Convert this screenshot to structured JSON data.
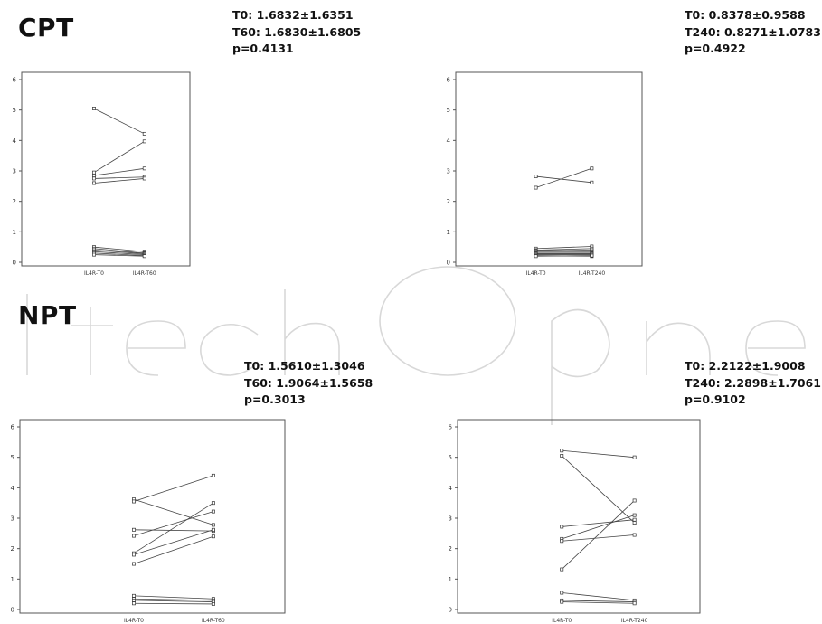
{
  "section_labels": {
    "top": "CPT",
    "bottom": "NPT"
  },
  "chart_data": [
    {
      "type": "line",
      "group": "CPT",
      "title": "",
      "xlabel": "",
      "ylabel": "",
      "categories": [
        "IL4R-T0",
        "IL4R-T60"
      ],
      "ylim": [
        0,
        6
      ],
      "yticks": [
        0,
        1,
        2,
        3,
        4,
        5,
        6
      ],
      "stats": [
        "T0: 1.6832±1.6351",
        "T60: 1.6830±1.6805",
        "p=0.4131"
      ],
      "pairs": [
        [
          5.05,
          4.22
        ],
        [
          2.95,
          3.97
        ],
        [
          2.85,
          3.08
        ],
        [
          2.75,
          2.8
        ],
        [
          2.6,
          2.75
        ],
        [
          0.5,
          0.35
        ],
        [
          0.45,
          0.3
        ],
        [
          0.4,
          0.28
        ],
        [
          0.35,
          0.25
        ],
        [
          0.3,
          0.22
        ],
        [
          0.25,
          0.2
        ]
      ]
    },
    {
      "type": "line",
      "group": "CPT",
      "title": "",
      "xlabel": "",
      "ylabel": "",
      "categories": [
        "IL4R-T0",
        "IL4R-T240"
      ],
      "ylim": [
        0,
        6
      ],
      "yticks": [
        0,
        1,
        2,
        3,
        4,
        5,
        6
      ],
      "stats": [
        "T0: 0.8378±0.9588",
        "T240: 0.8271±1.0783",
        "p=0.4922"
      ],
      "pairs": [
        [
          2.82,
          2.62
        ],
        [
          2.45,
          3.08
        ],
        [
          0.45,
          0.52
        ],
        [
          0.4,
          0.45
        ],
        [
          0.38,
          0.4
        ],
        [
          0.35,
          0.35
        ],
        [
          0.3,
          0.3
        ],
        [
          0.28,
          0.28
        ],
        [
          0.25,
          0.25
        ],
        [
          0.22,
          0.2
        ],
        [
          0.2,
          0.22
        ]
      ]
    },
    {
      "type": "line",
      "group": "NPT",
      "title": "",
      "xlabel": "",
      "ylabel": "",
      "categories": [
        "IL4R-T0",
        "IL4R-T60"
      ],
      "ylim": [
        0,
        6
      ],
      "yticks": [
        0,
        1,
        2,
        3,
        4,
        5,
        6
      ],
      "stats": [
        "T0: 1.5610±1.3046",
        "T60: 1.9064±1.5658",
        "p=0.3013"
      ],
      "pairs": [
        [
          3.62,
          2.78
        ],
        [
          3.55,
          4.4
        ],
        [
          2.62,
          2.58
        ],
        [
          2.42,
          3.22
        ],
        [
          1.85,
          3.5
        ],
        [
          1.8,
          2.62
        ],
        [
          1.5,
          2.4
        ],
        [
          0.45,
          0.35
        ],
        [
          0.35,
          0.3
        ],
        [
          0.3,
          0.25
        ],
        [
          0.2,
          0.18
        ]
      ]
    },
    {
      "type": "line",
      "group": "NPT",
      "title": "",
      "xlabel": "",
      "ylabel": "",
      "categories": [
        "IL4R-T0",
        "IL4R-T240"
      ],
      "ylim": [
        0,
        6
      ],
      "yticks": [
        0,
        1,
        2,
        3,
        4,
        5,
        6
      ],
      "stats": [
        "T0: 2.2122±1.9008",
        "T240: 2.2898±1.7061",
        "p=0.9102"
      ],
      "pairs": [
        [
          5.22,
          5.0
        ],
        [
          5.05,
          2.85
        ],
        [
          2.72,
          2.95
        ],
        [
          2.32,
          3.1
        ],
        [
          2.25,
          2.45
        ],
        [
          1.32,
          3.58
        ],
        [
          0.55,
          0.3
        ],
        [
          0.3,
          0.25
        ],
        [
          0.25,
          0.2
        ]
      ]
    }
  ]
}
